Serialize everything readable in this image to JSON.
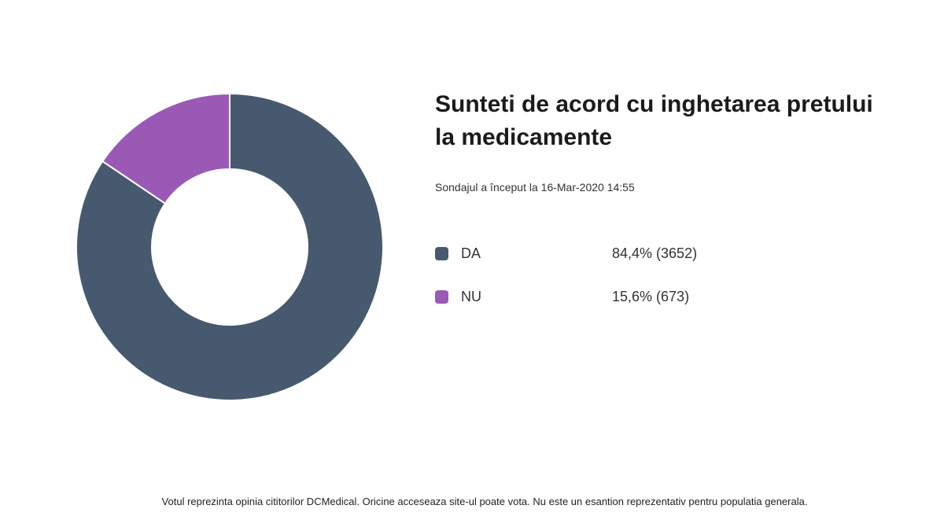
{
  "title": "Sunteti de acord cu inghetarea pretului la medicamente",
  "subtitle": "Sondajul a început la 16-Mar-2020 14:55",
  "footer": "Votul reprezinta opinia cititorilor DCMedical. Oricine acceseaza site-ul poate vota. Nu este un esantion reprezentativ pentru populatia generala.",
  "legend": [
    {
      "label": "DA",
      "value_text": "84,4% (3652)",
      "color": "#47596e"
    },
    {
      "label": "NU",
      "value_text": "15,6% (673)",
      "color": "#9b59b6"
    }
  ],
  "chart_data": {
    "type": "pie",
    "categories": [
      "DA",
      "NU"
    ],
    "values": [
      3652,
      673
    ],
    "percentages": [
      84.4,
      15.6
    ],
    "colors": [
      "#47596e",
      "#9b59b6"
    ],
    "title": "Sunteti de acord cu inghetarea pretului la medicamente",
    "legend": "right"
  }
}
